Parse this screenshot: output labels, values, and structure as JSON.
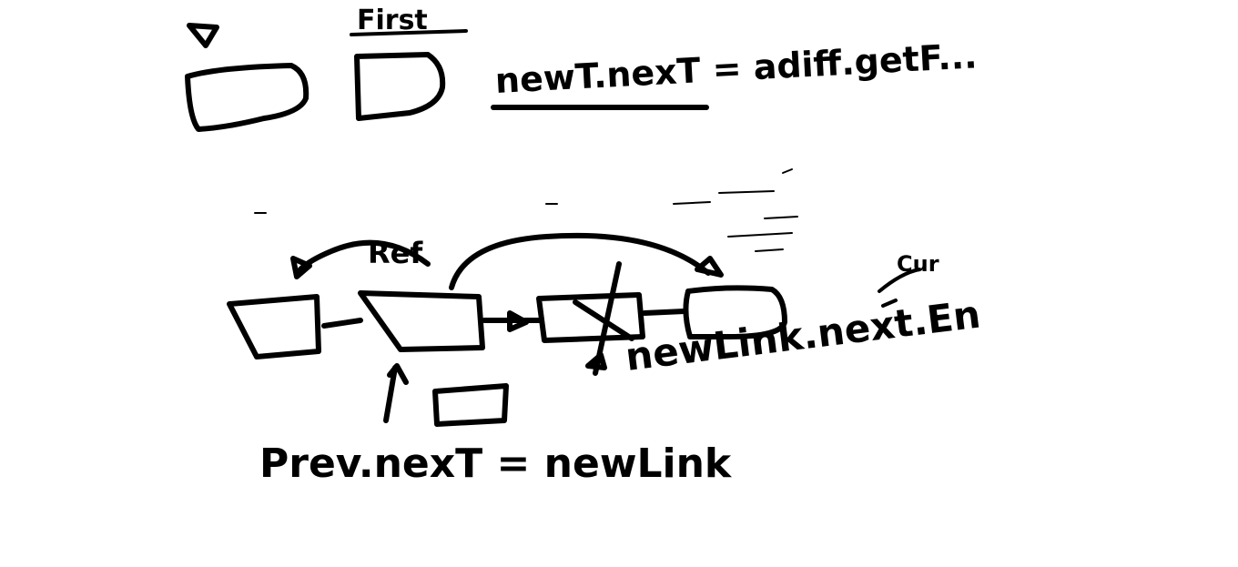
{
  "labels": {
    "first": "First",
    "next_assign": "newT.nexT = adiff.getF...",
    "prev_next": "Prev.nexT = newLink",
    "newlink_next": "newLink.next.En",
    "ref": "Ref",
    "cur": "Cur"
  },
  "colors": {
    "ink": "#000000",
    "background": "#ffffff"
  }
}
